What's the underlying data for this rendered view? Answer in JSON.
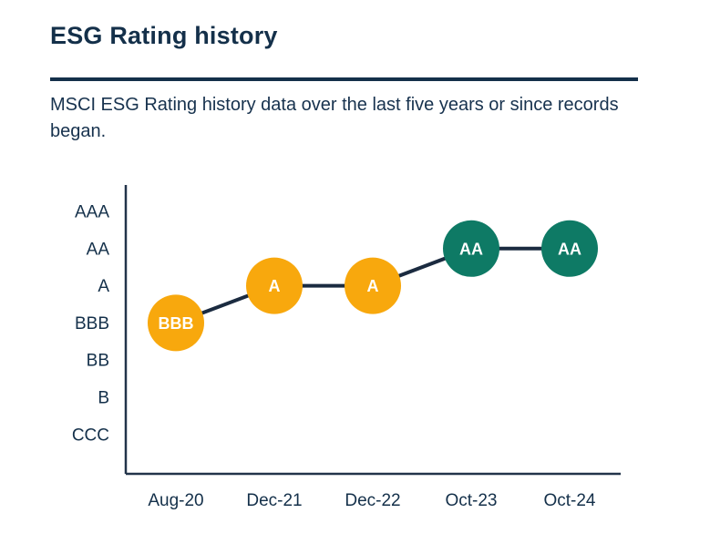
{
  "page": {
    "title": "ESG Rating history",
    "subtitle": "MSCI ESG Rating history data over the last five years or since records began."
  },
  "colors": {
    "navy": "#14304A",
    "axis": "#22344A",
    "connector": "#1B2B40",
    "yellow": "#F8A80D",
    "teal": "#0E7A65",
    "point_label": "#FFFFFF",
    "background": "#FFFFFF"
  },
  "chart_data": {
    "type": "line",
    "title": "ESG Rating history",
    "xlabel": "",
    "ylabel": "",
    "grid": false,
    "legend_position": "none",
    "y_categories_top_to_bottom": [
      "AAA",
      "AA",
      "A",
      "BBB",
      "BB",
      "B",
      "CCC"
    ],
    "x_categories": [
      "Aug-20",
      "Dec-21",
      "Dec-22",
      "Oct-23",
      "Oct-24"
    ],
    "series": [
      {
        "name": "MSCI ESG Rating",
        "points": [
          {
            "x": "Aug-20",
            "rating": "BBB",
            "color": "yellow"
          },
          {
            "x": "Dec-21",
            "rating": "A",
            "color": "yellow"
          },
          {
            "x": "Dec-22",
            "rating": "A",
            "color": "yellow"
          },
          {
            "x": "Oct-23",
            "rating": "AA",
            "color": "teal"
          },
          {
            "x": "Oct-24",
            "rating": "AA",
            "color": "teal"
          }
        ]
      }
    ]
  }
}
